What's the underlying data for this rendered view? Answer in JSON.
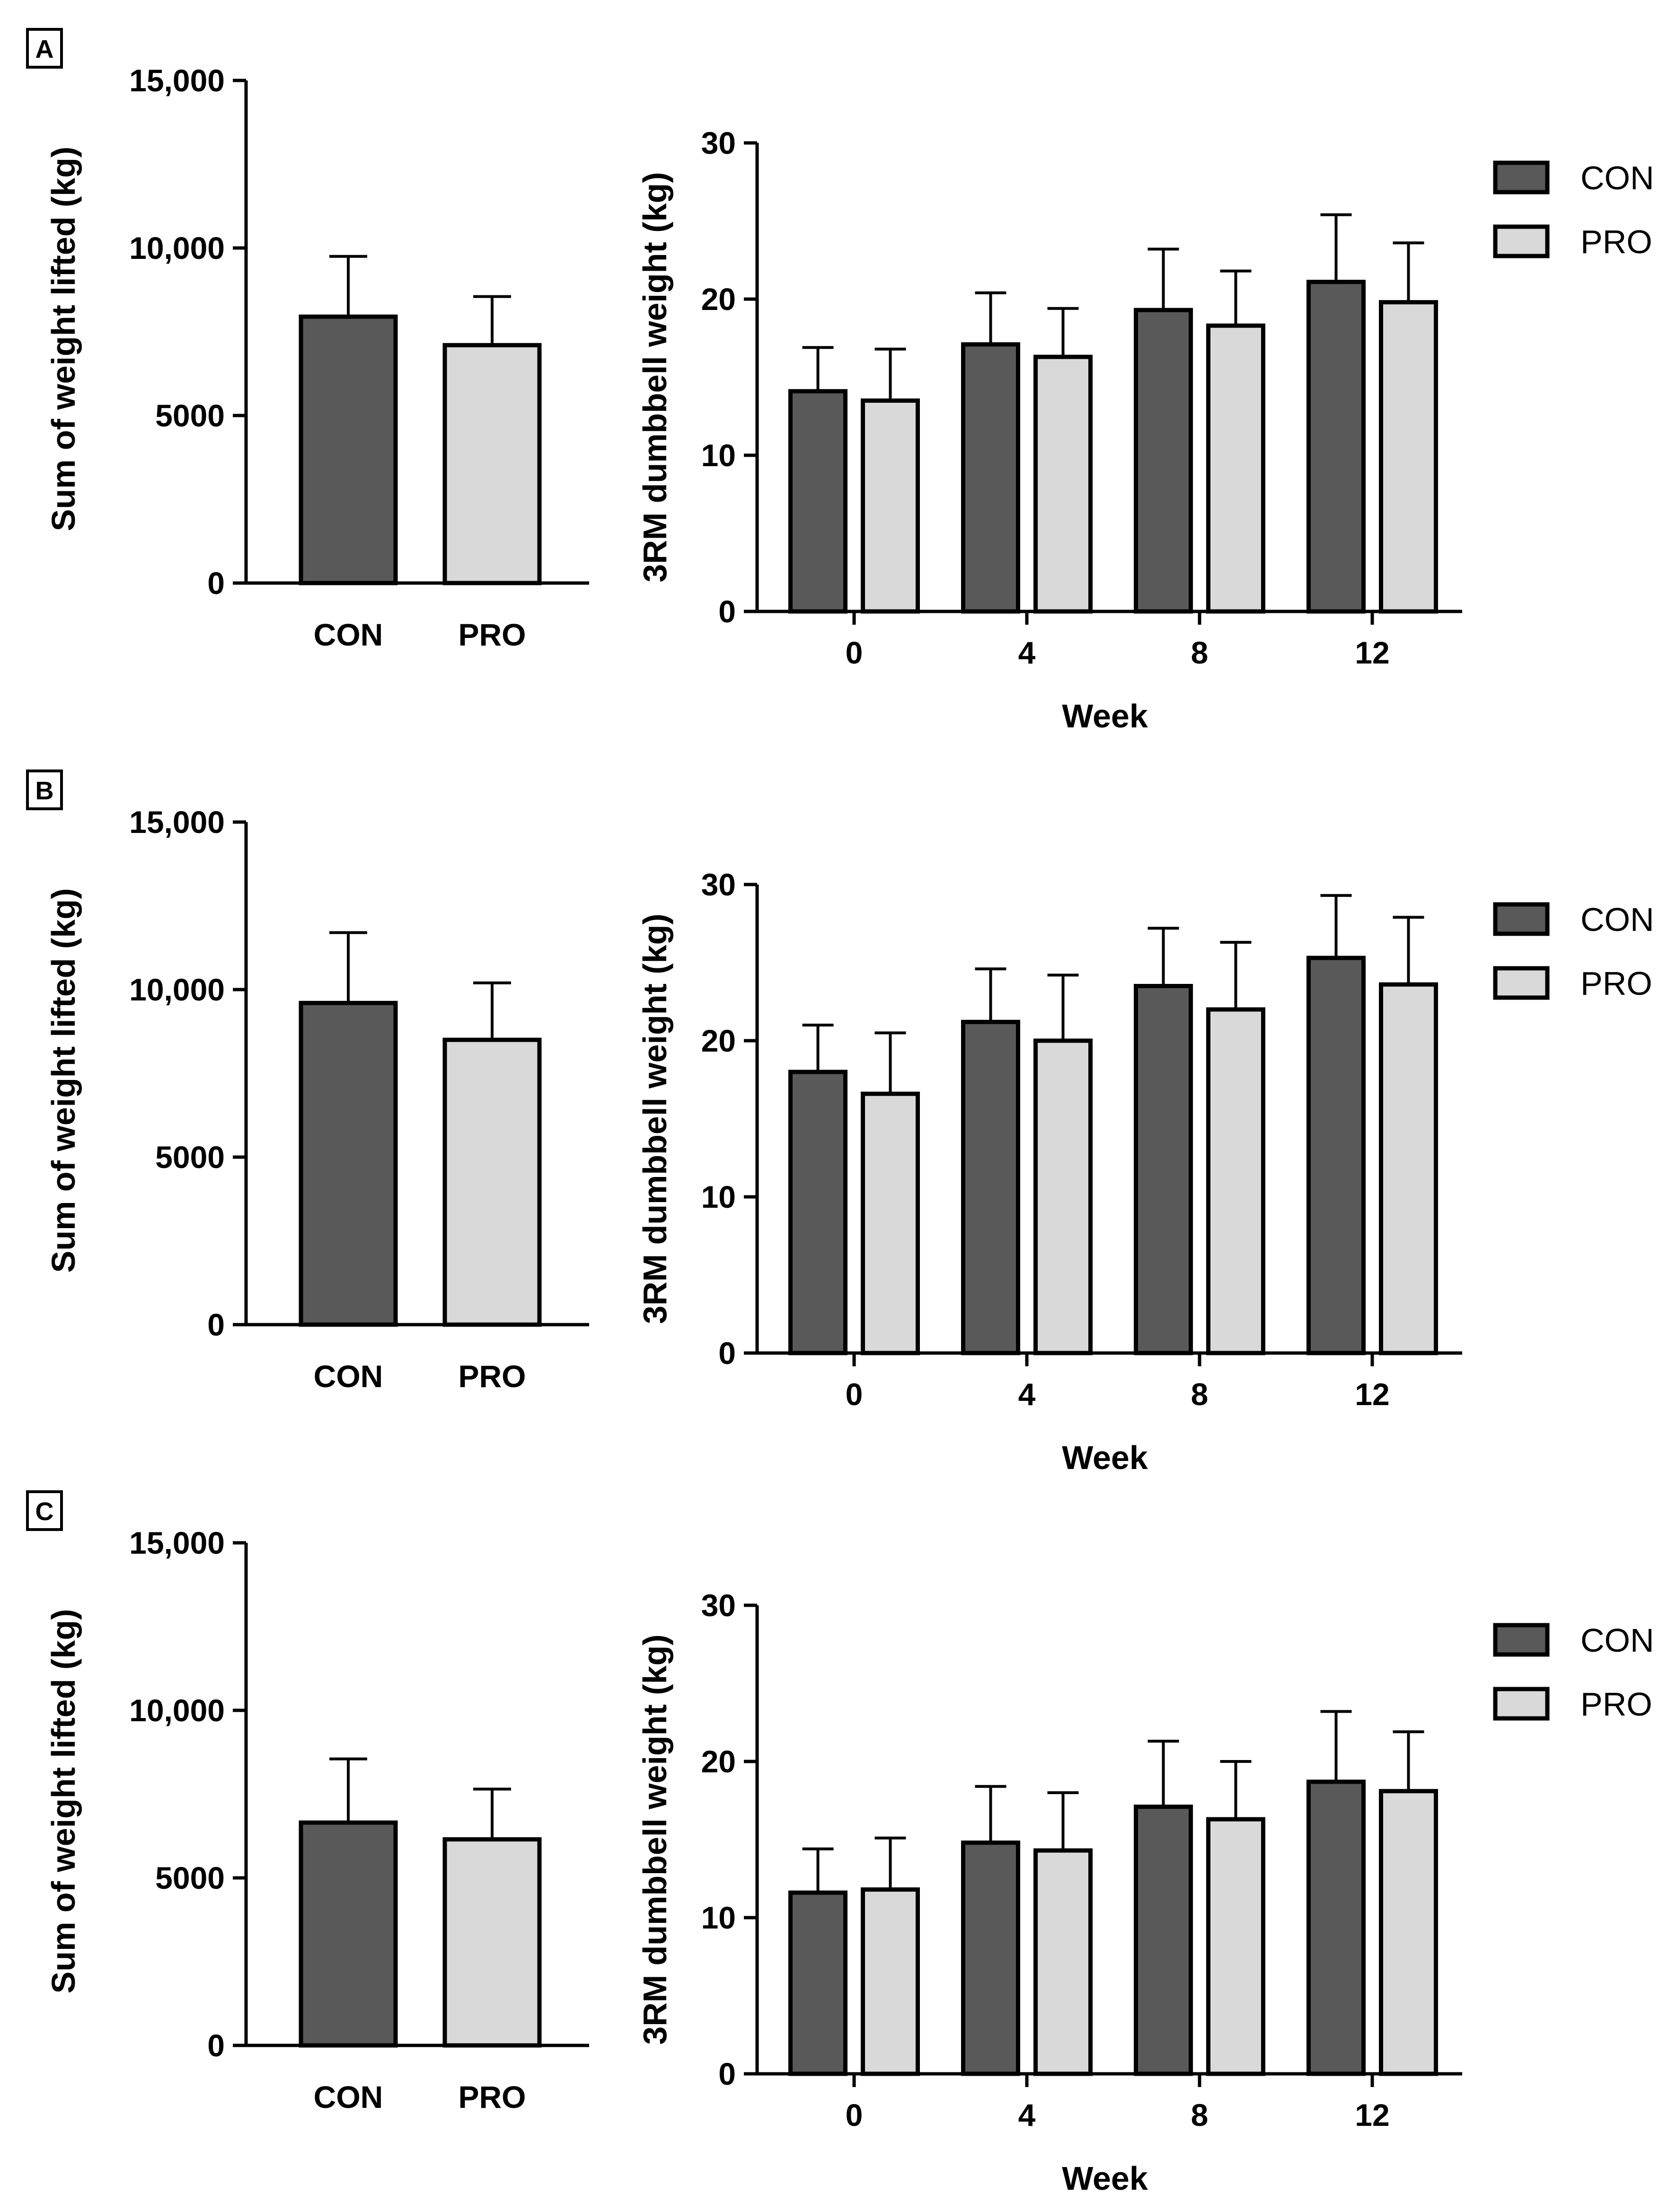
{
  "figure": {
    "colors": {
      "CON": "#595959",
      "PRO": "#d9d9d9"
    }
  },
  "chart_data": [
    {
      "panel": "A",
      "type": "bar",
      "subtype": "total",
      "ylabel": "Sum of weight lifted (kg)",
      "ylim": [
        0,
        15000
      ],
      "yticks": [
        0,
        5000,
        10000,
        15000
      ],
      "ytick_labels": [
        "0",
        "5000",
        "10,000",
        "15,000"
      ],
      "categories": [
        "CON",
        "PRO"
      ],
      "values": [
        7950,
        7100
      ],
      "errors": [
        1800,
        1450
      ]
    },
    {
      "panel": "A",
      "type": "bar",
      "subtype": "weekly",
      "xlabel": "Week",
      "ylabel": "3RM dumbbell weight (kg)",
      "ylim": [
        0,
        30
      ],
      "yticks": [
        0,
        10,
        20,
        30
      ],
      "categories": [
        "0",
        "4",
        "8",
        "12"
      ],
      "series": [
        {
          "name": "CON",
          "values": [
            14.1,
            17.1,
            19.3,
            21.1
          ],
          "errors": [
            2.8,
            3.3,
            3.9,
            4.3
          ]
        },
        {
          "name": "PRO",
          "values": [
            13.5,
            16.3,
            18.3,
            19.8
          ],
          "errors": [
            3.3,
            3.1,
            3.5,
            3.8
          ]
        }
      ],
      "legend": [
        "CON",
        "PRO"
      ]
    },
    {
      "panel": "B",
      "type": "bar",
      "subtype": "total",
      "ylabel": "Sum of weight lifted (kg)",
      "ylim": [
        0,
        15000
      ],
      "yticks": [
        0,
        5000,
        10000,
        15000
      ],
      "ytick_labels": [
        "0",
        "5000",
        "10,000",
        "15,000"
      ],
      "categories": [
        "CON",
        "PRO"
      ],
      "values": [
        9600,
        8500
      ],
      "errors": [
        2100,
        1700
      ]
    },
    {
      "panel": "B",
      "type": "bar",
      "subtype": "weekly",
      "xlabel": "Week",
      "ylabel": "3RM dumbbell weight (kg)",
      "ylim": [
        0,
        30
      ],
      "yticks": [
        0,
        10,
        20,
        30
      ],
      "categories": [
        "0",
        "4",
        "8",
        "12"
      ],
      "series": [
        {
          "name": "CON",
          "values": [
            18.0,
            21.2,
            23.5,
            25.3
          ],
          "errors": [
            3.0,
            3.4,
            3.7,
            4.0
          ]
        },
        {
          "name": "PRO",
          "values": [
            16.6,
            20.0,
            22.0,
            23.6
          ],
          "errors": [
            3.9,
            4.2,
            4.3,
            4.3
          ]
        }
      ],
      "legend": [
        "CON",
        "PRO"
      ]
    },
    {
      "panel": "C",
      "type": "bar",
      "subtype": "total",
      "ylabel": "Sum of weight lifted (kg)",
      "ylim": [
        0,
        15000
      ],
      "yticks": [
        0,
        5000,
        10000,
        15000
      ],
      "ytick_labels": [
        "0",
        "5000",
        "10,000",
        "15,000"
      ],
      "categories": [
        "CON",
        "PRO"
      ],
      "values": [
        6650,
        6150
      ],
      "errors": [
        1900,
        1500
      ]
    },
    {
      "panel": "C",
      "type": "bar",
      "subtype": "weekly",
      "xlabel": "Week",
      "ylabel": "3RM dumbbell weight (kg)",
      "ylim": [
        0,
        30
      ],
      "yticks": [
        0,
        10,
        20,
        30
      ],
      "categories": [
        "0",
        "4",
        "8",
        "12"
      ],
      "series": [
        {
          "name": "CON",
          "values": [
            11.6,
            14.8,
            17.1,
            18.7
          ],
          "errors": [
            2.8,
            3.6,
            4.2,
            4.5
          ]
        },
        {
          "name": "PRO",
          "values": [
            11.8,
            14.3,
            16.3,
            18.1
          ],
          "errors": [
            3.3,
            3.7,
            3.7,
            3.8
          ]
        }
      ],
      "legend": [
        "CON",
        "PRO"
      ]
    }
  ]
}
